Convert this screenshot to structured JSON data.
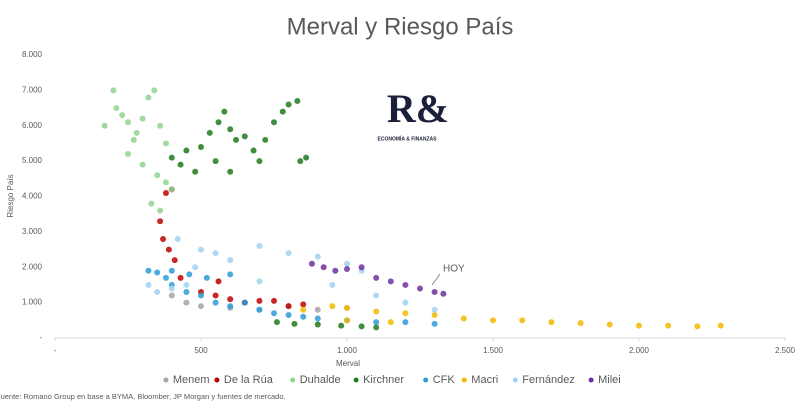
{
  "chart_data": {
    "type": "scatter",
    "title": "Merval y Riesgo País",
    "xlabel": "Merval",
    "ylabel": "Riesgo País",
    "source": "Fuente: Romano Group en base a BYMA, Bloomber, JP Morgan y fuentes de mercado.",
    "logo": {
      "mark": "R&",
      "tagline": "ECONOMÍA & FINANZAS"
    },
    "annotation": {
      "text": "HOY"
    },
    "xlim": [
      0,
      2500
    ],
    "ylim": [
      0,
      8000
    ],
    "grid": false,
    "legend": "bottom",
    "xticks": [
      {
        "value": 0,
        "label": "-"
      },
      500,
      {
        "value": 1000,
        "label": "1.000"
      },
      {
        "value": 1500,
        "label": "1.500"
      },
      {
        "value": 2000,
        "label": "2.000"
      },
      {
        "value": 2500,
        "label": "2.500"
      }
    ],
    "yticks": [
      {
        "value": 0,
        "label": "-"
      },
      {
        "value": 1000,
        "label": "1.000"
      },
      {
        "value": 2000,
        "label": "2.000"
      },
      {
        "value": 3000,
        "label": "3.000"
      },
      {
        "value": 4000,
        "label": "4.000"
      },
      {
        "value": 5000,
        "label": "5.000"
      },
      {
        "value": 6000,
        "label": "6.000"
      },
      {
        "value": 7000,
        "label": "7.000"
      },
      {
        "value": 8000,
        "label": "8.000"
      }
    ],
    "series": [
      {
        "name": "Menem",
        "color": "#a5a5a5",
        "x": [
          400,
          450,
          500,
          600,
          700,
          800,
          900,
          1000
        ],
        "y": [
          1200,
          1000,
          900,
          850,
          800,
          900,
          800,
          850
        ]
      },
      {
        "name": "De la Rúa",
        "color": "#c00000",
        "x": [
          380,
          400,
          360,
          370,
          390,
          410,
          430,
          500,
          550,
          600,
          650,
          700,
          750,
          800,
          850,
          560
        ],
        "y": [
          4100,
          4200,
          3300,
          2800,
          2500,
          2200,
          1700,
          1300,
          1200,
          1100,
          1000,
          1050,
          1050,
          900,
          950,
          1600
        ]
      },
      {
        "name": "Duhalde",
        "color": "#8fd48f",
        "x": [
          170,
          200,
          210,
          230,
          250,
          280,
          300,
          320,
          340,
          360,
          380,
          250,
          300,
          350,
          380,
          400,
          330,
          360,
          270
        ],
        "y": [
          6000,
          7000,
          6500,
          6300,
          6100,
          5800,
          6200,
          6800,
          7000,
          6000,
          5500,
          5200,
          4900,
          4600,
          4400,
          4200,
          3800,
          3600,
          5600
        ]
      },
      {
        "name": "Kirchner",
        "color": "#1e7b1e",
        "x": [
          400,
          430,
          450,
          480,
          500,
          530,
          560,
          580,
          600,
          620,
          650,
          680,
          700,
          720,
          750,
          780,
          800,
          830,
          860,
          840,
          600,
          550,
          760,
          820,
          900,
          980,
          1050,
          1100
        ],
        "y": [
          5100,
          4900,
          5300,
          4700,
          5400,
          5800,
          6100,
          6400,
          5900,
          5600,
          5700,
          5300,
          5000,
          5600,
          6100,
          6400,
          6600,
          6700,
          5100,
          5000,
          4700,
          5000,
          450,
          400,
          380,
          350,
          330,
          300
        ]
      },
      {
        "name": "CFK",
        "color": "#2e9bd6",
        "x": [
          320,
          350,
          380,
          400,
          450,
          500,
          550,
          600,
          650,
          700,
          750,
          800,
          850,
          900,
          1000,
          1100,
          1200,
          1300,
          400,
          460,
          520,
          600
        ],
        "y": [
          1900,
          1850,
          1700,
          1500,
          1300,
          1200,
          1000,
          900,
          1000,
          800,
          700,
          650,
          600,
          550,
          500,
          450,
          450,
          400,
          1900,
          1800,
          1700,
          1800
        ]
      },
      {
        "name": "Macri",
        "color": "#f5b800",
        "x": [
          850,
          950,
          1000,
          1100,
          1200,
          1300,
          1400,
          1500,
          1600,
          1700,
          1800,
          1900,
          2000,
          2100,
          2200,
          2280,
          1000,
          1150
        ],
        "y": [
          800,
          900,
          850,
          750,
          700,
          650,
          550,
          500,
          500,
          450,
          420,
          380,
          350,
          350,
          330,
          350,
          500,
          450
        ]
      },
      {
        "name": "Fernández",
        "color": "#9fd3f0",
        "x": [
          320,
          350,
          400,
          450,
          500,
          550,
          600,
          700,
          800,
          900,
          1000,
          1050,
          950,
          1100,
          1200,
          1300,
          420,
          480,
          700
        ],
        "y": [
          1500,
          1300,
          1400,
          1500,
          2500,
          2400,
          2200,
          2600,
          2400,
          2300,
          2100,
          1900,
          1500,
          1200,
          1000,
          800,
          2800,
          2000,
          1600
        ]
      },
      {
        "name": "Milei",
        "color": "#7030a0",
        "x": [
          880,
          920,
          960,
          1000,
          1050,
          1100,
          1150,
          1200,
          1250,
          1300,
          1330
        ],
        "y": [
          2100,
          2000,
          1900,
          1950,
          2000,
          1700,
          1600,
          1500,
          1400,
          1300,
          1250
        ]
      }
    ]
  }
}
